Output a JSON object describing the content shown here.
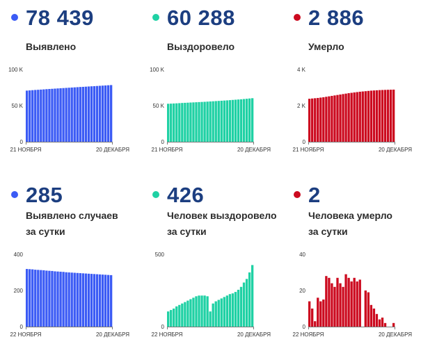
{
  "panels": [
    {
      "id": "detected",
      "number": "78 439",
      "label_lines": [
        "Выявлено"
      ],
      "color": "#3b5bf5",
      "chart_data": {
        "type": "bar",
        "title": "",
        "ylim": [
          0,
          100000
        ],
        "y_ticks": [
          {
            "value": 0,
            "label": "0"
          },
          {
            "value": 50000,
            "label": "50 K"
          },
          {
            "value": 100000,
            "label": "100 K"
          }
        ],
        "x_tick_labels": [
          "21 НОЯБРЯ",
          "20 ДЕКАБРЯ"
        ],
        "values": [
          70800,
          71100,
          71400,
          71700,
          71950,
          72200,
          72500,
          72800,
          73050,
          73300,
          73550,
          73800,
          74050,
          74300,
          74550,
          74800,
          75050,
          75300,
          75550,
          75800,
          76000,
          76250,
          76500,
          76750,
          76950,
          77200,
          77450,
          77700,
          77950,
          78200,
          78439
        ]
      }
    },
    {
      "id": "recovered",
      "number": "60 288",
      "label_lines": [
        "Выздоровело"
      ],
      "color": "#1fd1a4",
      "chart_data": {
        "type": "bar",
        "title": "",
        "ylim": [
          0,
          100000
        ],
        "y_ticks": [
          {
            "value": 0,
            "label": "0"
          },
          {
            "value": 50000,
            "label": "50 K"
          },
          {
            "value": 100000,
            "label": "100 K"
          }
        ],
        "x_tick_labels": [
          "21 НОЯБРЯ",
          "20 ДЕКАБРЯ"
        ],
        "values": [
          52600,
          52800,
          53000,
          53200,
          53450,
          53700,
          53900,
          54100,
          54300,
          54500,
          54700,
          54900,
          55100,
          55300,
          55550,
          55800,
          56050,
          56300,
          56550,
          56800,
          57050,
          57300,
          57600,
          57900,
          58200,
          58500,
          58800,
          59150,
          59500,
          59900,
          60288
        ]
      }
    },
    {
      "id": "died",
      "number": "2 886",
      "label_lines": [
        "Умерло"
      ],
      "color": "#cc0a1f",
      "chart_data": {
        "type": "bar",
        "title": "",
        "ylim": [
          0,
          4000
        ],
        "y_ticks": [
          {
            "value": 0,
            "label": "0"
          },
          {
            "value": 2000,
            "label": "2 K"
          },
          {
            "value": 4000,
            "label": "4 K"
          }
        ],
        "x_tick_labels": [
          "21 НОЯБРЯ",
          "20 ДЕКАБРЯ"
        ],
        "values": [
          2380,
          2395,
          2410,
          2425,
          2445,
          2465,
          2490,
          2515,
          2540,
          2565,
          2590,
          2615,
          2640,
          2665,
          2690,
          2710,
          2730,
          2750,
          2770,
          2785,
          2800,
          2815,
          2830,
          2840,
          2850,
          2860,
          2866,
          2872,
          2878,
          2882,
          2886
        ]
      }
    },
    {
      "id": "detected-daily",
      "number": "285",
      "label_lines": [
        "Выявлено случаев",
        "за сутки"
      ],
      "color": "#3b5bf5",
      "chart_data": {
        "type": "bar",
        "title": "",
        "ylim": [
          0,
          400
        ],
        "y_ticks": [
          {
            "value": 0,
            "label": "0"
          },
          {
            "value": 200,
            "label": "200"
          },
          {
            "value": 400,
            "label": "400"
          }
        ],
        "x_tick_labels": [
          "22 НОЯБРЯ",
          "20 ДЕКАБРЯ"
        ],
        "values": [
          319,
          318,
          317,
          315,
          314,
          313,
          312,
          310,
          309,
          308,
          306,
          305,
          304,
          303,
          301,
          300,
          299,
          298,
          297,
          296,
          295,
          294,
          293,
          292,
          291,
          290,
          289,
          288,
          287,
          286,
          285
        ]
      }
    },
    {
      "id": "recovered-daily",
      "number": "426",
      "label_lines": [
        "Человек выздоровело",
        "за сутки"
      ],
      "color": "#1fd1a4",
      "chart_data": {
        "type": "bar",
        "title": "",
        "ylim": [
          0,
          500
        ],
        "y_ticks": [
          {
            "value": 0,
            "label": "0"
          },
          {
            "value": 500,
            "label": "500"
          }
        ],
        "x_tick_labels": [
          "22 НОЯБРЯ",
          "20 ДЕКАБРЯ"
        ],
        "values": [
          105,
          115,
          125,
          140,
          150,
          160,
          170,
          180,
          190,
          200,
          210,
          215,
          215,
          215,
          210,
          105,
          160,
          175,
          185,
          195,
          205,
          215,
          225,
          230,
          240,
          255,
          275,
          305,
          330,
          375,
          426
        ]
      }
    },
    {
      "id": "died-daily",
      "number": "2",
      "label_lines": [
        "Человека умерло",
        "за сутки"
      ],
      "color": "#cc0a1f",
      "chart_data": {
        "type": "bar",
        "title": "",
        "ylim": [
          0,
          40
        ],
        "y_ticks": [
          {
            "value": 0,
            "label": "0"
          },
          {
            "value": 20,
            "label": "20"
          },
          {
            "value": 40,
            "label": "40"
          }
        ],
        "x_tick_labels": [
          "22 НОЯБРЯ",
          "20 ДЕКАБРЯ"
        ],
        "values": [
          14,
          10,
          3,
          16,
          14,
          15,
          28,
          27,
          24,
          22,
          27,
          24,
          22,
          29,
          27,
          25,
          27,
          25,
          26,
          0,
          20,
          19,
          12,
          10,
          7,
          4,
          5,
          2,
          0,
          0,
          2
        ]
      }
    }
  ]
}
